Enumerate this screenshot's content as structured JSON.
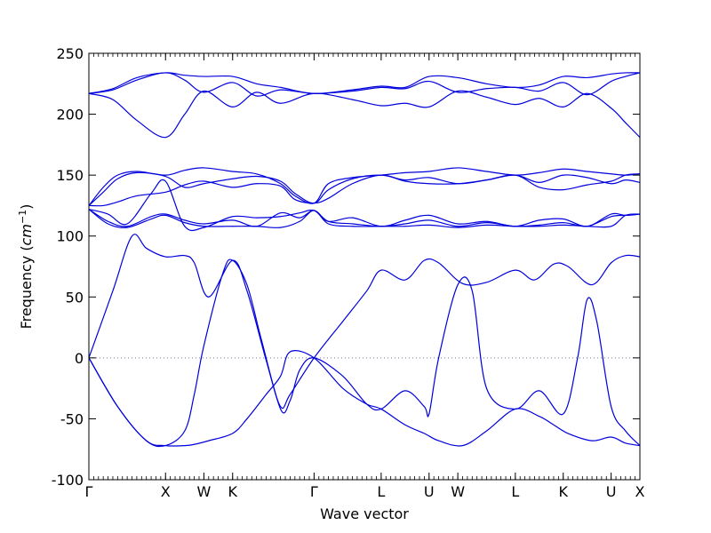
{
  "chart_data": {
    "type": "line",
    "title": "",
    "xlabel": "Wave vector",
    "ylabel_main": "Frequency (",
    "ylabel_unit": "cm",
    "ylabel_exp": "−1",
    "ylabel_close": ")",
    "ylim": [
      -100,
      250
    ],
    "yticks": [
      -100,
      -50,
      0,
      50,
      100,
      150,
      200,
      250
    ],
    "xlim": [
      0,
      11.5
    ],
    "xticks": [
      {
        "pos": 0.0,
        "label": "Γ"
      },
      {
        "pos": 1.6,
        "label": "X"
      },
      {
        "pos": 2.4,
        "label": "W"
      },
      {
        "pos": 3.0,
        "label": "K"
      },
      {
        "pos": 4.7,
        "label": "Γ"
      },
      {
        "pos": 6.1,
        "label": "L"
      },
      {
        "pos": 7.1,
        "label": "U"
      },
      {
        "pos": 7.7,
        "label": "W"
      },
      {
        "pos": 8.9,
        "label": "L"
      },
      {
        "pos": 9.9,
        "label": "K"
      },
      {
        "pos": 10.9,
        "label": "U"
      },
      {
        "pos": 11.5,
        "label": "X"
      }
    ],
    "minor_tick_step": 0.1,
    "zero_line": {
      "y": 0,
      "style": "dotted",
      "color": "#7777aa"
    },
    "line_color": "#0000dd",
    "grid": false,
    "series": [
      {
        "x": [
          0,
          0.5,
          1.0,
          1.6,
          2.0,
          2.4,
          3.0,
          3.5,
          4.0,
          4.7,
          5.5,
          6.1,
          6.6,
          7.1,
          7.7,
          8.3,
          8.9,
          9.4,
          9.9,
          10.4,
          10.9,
          11.2,
          11.5
        ],
        "y": [
          217,
          221,
          230,
          234,
          232,
          231,
          231,
          225,
          222,
          217,
          220,
          223,
          222,
          231,
          230,
          225,
          222,
          224,
          231,
          230,
          233,
          234,
          234
        ]
      },
      {
        "x": [
          0,
          0.5,
          1.0,
          1.6,
          2.0,
          2.4,
          3.0,
          3.5,
          4.0,
          4.7,
          5.5,
          6.1,
          6.6,
          7.1,
          7.7,
          8.3,
          8.9,
          9.4,
          9.9,
          10.4,
          10.9,
          11.2,
          11.5
        ],
        "y": [
          217,
          220,
          228,
          234,
          228,
          218,
          226,
          215,
          220,
          217,
          219,
          222,
          221,
          227,
          218,
          221,
          222,
          219,
          226,
          216,
          227,
          231,
          234
        ]
      },
      {
        "x": [
          0,
          0.5,
          1.0,
          1.6,
          2.0,
          2.4,
          3.0,
          3.5,
          4.0,
          4.7,
          5.5,
          6.1,
          6.6,
          7.1,
          7.7,
          8.3,
          8.9,
          9.4,
          9.9,
          10.4,
          10.9,
          11.2,
          11.5
        ],
        "y": [
          217,
          212,
          195,
          181,
          200,
          219,
          206,
          218,
          209,
          217,
          212,
          207,
          209,
          206,
          219,
          214,
          208,
          213,
          206,
          217,
          205,
          193,
          181
        ]
      },
      {
        "x": [
          0,
          0.3,
          0.6,
          1.0,
          1.6,
          2.0,
          2.4,
          3.0,
          3.5,
          4.0,
          4.3,
          4.7,
          5.0,
          5.5,
          6.1,
          6.6,
          7.1,
          7.7,
          8.3,
          8.9,
          9.4,
          9.9,
          10.4,
          10.9,
          11.2,
          11.5
        ],
        "y": [
          125,
          140,
          150,
          153,
          150,
          154,
          156,
          153,
          151,
          143,
          133,
          127,
          143,
          148,
          150,
          152,
          153,
          156,
          153,
          150,
          152,
          155,
          153,
          151,
          150,
          151
        ]
      },
      {
        "x": [
          0,
          0.3,
          0.6,
          1.0,
          1.6,
          2.0,
          2.4,
          3.0,
          3.5,
          4.0,
          4.3,
          4.7,
          5.0,
          5.5,
          6.1,
          6.6,
          7.1,
          7.7,
          8.3,
          8.9,
          9.4,
          9.9,
          10.4,
          10.9,
          11.2,
          11.5
        ],
        "y": [
          125,
          136,
          147,
          152,
          149,
          140,
          143,
          147,
          149,
          145,
          135,
          127,
          138,
          147,
          150,
          146,
          148,
          143,
          146,
          150,
          144,
          150,
          148,
          143,
          146,
          144
        ]
      },
      {
        "x": [
          0,
          0.3,
          0.6,
          1.0,
          1.6,
          2.0,
          2.4,
          3.0,
          3.5,
          4.0,
          4.3,
          4.7,
          5.0,
          5.5,
          6.1,
          6.6,
          7.1,
          7.7,
          8.3,
          8.9,
          9.4,
          9.9,
          10.4,
          10.9,
          11.2,
          11.5
        ],
        "y": [
          125,
          125,
          128,
          133,
          136,
          142,
          145,
          140,
          143,
          141,
          130,
          127,
          131,
          143,
          150,
          145,
          143,
          143,
          146,
          150,
          140,
          138,
          142,
          145,
          150,
          151
        ]
      },
      {
        "x": [
          0,
          0.4,
          0.8,
          1.3,
          1.6,
          2.0,
          2.4,
          3.0,
          3.5,
          4.0,
          4.4,
          4.7,
          5.0,
          5.5,
          6.1,
          6.6,
          7.1,
          7.7,
          8.3,
          8.9,
          9.4,
          9.9,
          10.4,
          10.9,
          11.2,
          11.5
        ],
        "y": [
          122,
          118,
          110,
          135,
          145,
          108,
          107,
          116,
          115,
          116,
          119,
          121,
          112,
          115,
          108,
          113,
          117,
          110,
          112,
          108,
          113,
          114,
          108,
          118,
          117,
          118
        ]
      },
      {
        "x": [
          0,
          0.4,
          0.8,
          1.3,
          1.6,
          2.0,
          2.4,
          3.0,
          3.5,
          4.0,
          4.4,
          4.7,
          5.0,
          5.5,
          6.1,
          6.6,
          7.1,
          7.7,
          8.3,
          8.9,
          9.4,
          9.9,
          10.4,
          10.9,
          11.2,
          11.5
        ],
        "y": [
          122,
          112,
          108,
          116,
          118,
          113,
          110,
          113,
          108,
          119,
          115,
          121,
          112,
          110,
          108,
          110,
          113,
          108,
          111,
          108,
          109,
          111,
          108,
          116,
          117,
          118
        ]
      },
      {
        "x": [
          0,
          0.4,
          0.8,
          1.3,
          1.6,
          2.0,
          2.4,
          3.0,
          3.5,
          4.0,
          4.4,
          4.7,
          5.0,
          5.5,
          6.1,
          6.6,
          7.1,
          7.7,
          8.3,
          8.9,
          9.4,
          9.9,
          10.4,
          10.9,
          11.2,
          11.5
        ],
        "y": [
          122,
          110,
          107,
          114,
          117,
          111,
          108,
          108,
          108,
          107,
          112,
          121,
          110,
          108,
          108,
          108,
          109,
          107,
          109,
          108,
          108,
          109,
          108,
          108,
          117,
          118
        ]
      },
      {
        "x": [
          0,
          0.5,
          0.9,
          1.2,
          1.6,
          2.0,
          2.2,
          2.5,
          3.0,
          3.3,
          3.7,
          4.0,
          4.2,
          4.7,
          5.3,
          5.8,
          6.1,
          6.6,
          7.0,
          7.3,
          7.8,
          8.3,
          8.9,
          9.3,
          9.7,
          10.0,
          10.5,
          10.9,
          11.2,
          11.5
        ],
        "y": [
          0,
          55,
          100,
          90,
          83,
          84,
          78,
          50,
          80,
          55,
          -2,
          -40,
          -30,
          0,
          30,
          55,
          72,
          64,
          80,
          78,
          61,
          62,
          72,
          64,
          77,
          75,
          60,
          78,
          84,
          83
        ]
      },
      {
        "x": [
          0,
          0.6,
          1.2,
          1.6,
          2.0,
          2.2,
          2.5,
          3.0,
          3.3,
          3.7,
          4.0,
          4.2,
          4.7,
          5.3,
          5.8,
          6.1,
          6.6,
          7.0,
          7.3,
          7.8,
          8.3,
          8.9,
          9.4,
          9.7,
          10.0,
          10.5,
          10.9,
          11.2,
          11.5
        ],
        "y": [
          0,
          -40,
          -68,
          -72,
          -72,
          -71,
          -68,
          -62,
          -50,
          -30,
          -15,
          5,
          0,
          -25,
          -38,
          -42,
          -55,
          -62,
          -68,
          -72,
          -60,
          -42,
          -48,
          -55,
          -62,
          -68,
          -65,
          -70,
          -72
        ]
      },
      {
        "x": [
          0,
          0.6,
          1.2,
          1.6,
          2.0,
          2.2,
          2.4,
          2.8,
          3.0,
          3.3,
          3.6,
          4.0,
          4.2,
          4.4,
          4.7,
          5.3,
          5.8,
          6.1,
          6.6,
          7.0,
          7.1,
          7.3,
          7.7,
          8.0,
          8.3,
          8.9,
          9.4,
          9.9,
          10.2,
          10.4,
          10.6,
          10.9,
          11.2,
          11.5
        ],
        "y": [
          0,
          -40,
          -68,
          -72,
          -60,
          -30,
          10,
          70,
          80,
          60,
          15,
          -42,
          -35,
          -10,
          0,
          -15,
          -38,
          -42,
          -27,
          -40,
          -46,
          0,
          60,
          55,
          -25,
          -42,
          -27,
          -46,
          0,
          48,
          30,
          -40,
          -60,
          -72
        ]
      }
    ]
  }
}
